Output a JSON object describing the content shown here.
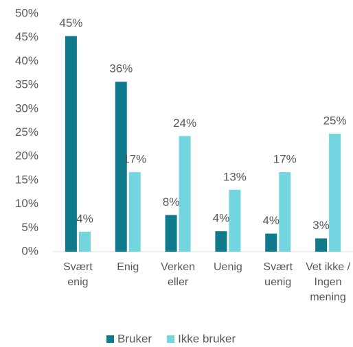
{
  "chart_data": {
    "type": "bar",
    "categories": [
      "Svært enig",
      "Enig",
      "Verken eller",
      "Uenig",
      "Svært uenig",
      "Vet ikke / Ingen mening"
    ],
    "series": [
      {
        "name": "Bruker",
        "color": "#0e7a8c",
        "values": [
          45.3,
          35.7,
          7.7,
          4.3,
          3.8,
          2.8
        ],
        "value_labels": [
          "45%",
          "36%",
          "8%",
          "4%",
          "4%",
          "3%"
        ]
      },
      {
        "name": "Ikke bruker",
        "color": "#73d5e0",
        "values": [
          4.2,
          16.7,
          24.3,
          13.0,
          16.7,
          24.8
        ],
        "value_labels": [
          "4%",
          "17%",
          "24%",
          "13%",
          "17%",
          "25%"
        ]
      }
    ],
    "ylim": [
      0,
      50
    ],
    "yticks": [
      {
        "value": 0,
        "label": "0%"
      },
      {
        "value": 5,
        "label": "5%"
      },
      {
        "value": 10,
        "label": "10%"
      },
      {
        "value": 15,
        "label": "15%"
      },
      {
        "value": 20,
        "label": "20%"
      },
      {
        "value": 25,
        "label": "25%"
      },
      {
        "value": 30,
        "label": "30%"
      },
      {
        "value": 35,
        "label": "35%"
      },
      {
        "value": 40,
        "label": "40%"
      },
      {
        "value": 45,
        "label": "45%"
      },
      {
        "value": 50,
        "label": "50%"
      }
    ],
    "grid": false,
    "legend": "bottom"
  }
}
